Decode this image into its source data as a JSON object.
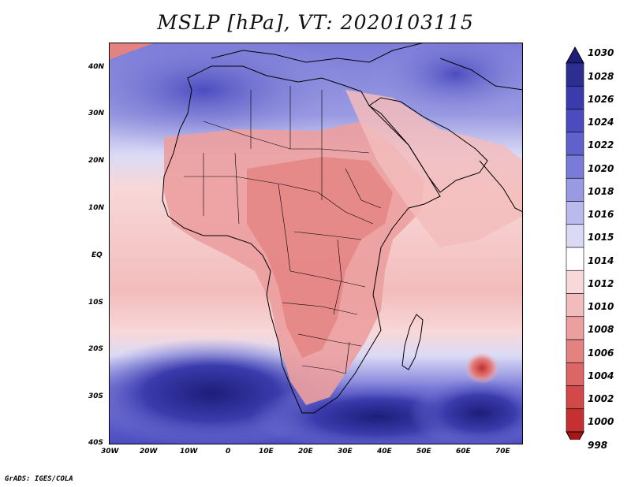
{
  "title": "MSLP [hPa], VT: 2020103115",
  "credit": "GrADS: IGES/COLA",
  "map": {
    "lat_labels": [
      "40N",
      "30N",
      "20N",
      "10N",
      "EQ",
      "10S",
      "20S",
      "30S",
      "40S"
    ],
    "lon_labels": [
      "30W",
      "20W",
      "10W",
      "0",
      "10E",
      "20E",
      "30E",
      "40E",
      "50E",
      "60E",
      "70E"
    ],
    "lat_range": [
      -40,
      45
    ],
    "lon_range": [
      -30,
      75
    ]
  },
  "colorbar": {
    "levels": [
      "1030",
      "1028",
      "1026",
      "1024",
      "1022",
      "1020",
      "1018",
      "1016",
      "1015",
      "1014",
      "1012",
      "1010",
      "1008",
      "1006",
      "1004",
      "1002",
      "1000",
      "998"
    ],
    "colors": [
      "#1d1d7a",
      "#2e2e92",
      "#3b3bad",
      "#4c4cc0",
      "#6161cd",
      "#7a7ad8",
      "#9a9ae2",
      "#babaee",
      "#dadaf6",
      "#ffffff",
      "#f8d8d8",
      "#f3bcbc",
      "#ec9f9f",
      "#e48282",
      "#dc6565",
      "#d34848",
      "#c53030",
      "#a61818"
    ]
  }
}
